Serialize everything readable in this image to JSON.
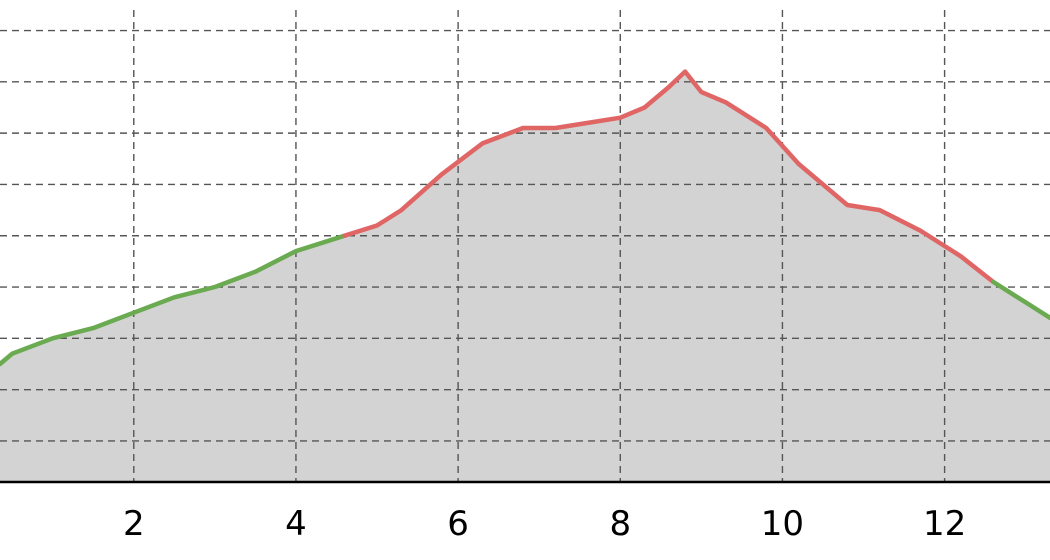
{
  "chart_data": {
    "type": "area",
    "title": "",
    "xlabel": "",
    "ylabel": "",
    "xlim": [
      0.35,
      13.3
    ],
    "ylim": [
      0,
      9.2
    ],
    "x_ticks": [
      2,
      4,
      6,
      8,
      10,
      12
    ],
    "x_tick_labels": [
      "2",
      "4",
      "6",
      "8",
      "10",
      "12"
    ],
    "grid": {
      "x": true,
      "y": true,
      "style": "dashed"
    },
    "y_grid_lines": [
      0.8,
      1.8,
      2.8,
      3.8,
      4.8,
      5.8,
      6.8,
      7.8,
      8.8
    ],
    "fill_color": "#d3d3d3",
    "series": [
      {
        "color": "#6aaa50",
        "x": [
          0.35,
          0.5,
          1.0,
          1.5,
          2.0,
          2.5,
          3.0,
          3.5,
          4.0,
          4.6
        ],
        "y": [
          2.3,
          2.5,
          2.8,
          3.0,
          3.3,
          3.6,
          3.8,
          4.1,
          4.5,
          4.8
        ]
      },
      {
        "color": "#e06666",
        "x": [
          4.6,
          5.0,
          5.3,
          5.8,
          6.3,
          6.8,
          7.2,
          7.6,
          8.0,
          8.3,
          8.6,
          8.8,
          9.0,
          9.3,
          9.8,
          10.2,
          10.8,
          11.2,
          11.7,
          12.2,
          12.6
        ],
        "y": [
          4.8,
          5.0,
          5.3,
          6.0,
          6.6,
          6.9,
          6.9,
          7.0,
          7.1,
          7.3,
          7.7,
          8.0,
          7.6,
          7.4,
          6.9,
          6.2,
          5.4,
          5.3,
          4.9,
          4.4,
          3.9
        ]
      },
      {
        "color": "#6aaa50",
        "x": [
          12.6,
          13.0,
          13.3
        ],
        "y": [
          3.9,
          3.5,
          3.2
        ]
      }
    ]
  }
}
